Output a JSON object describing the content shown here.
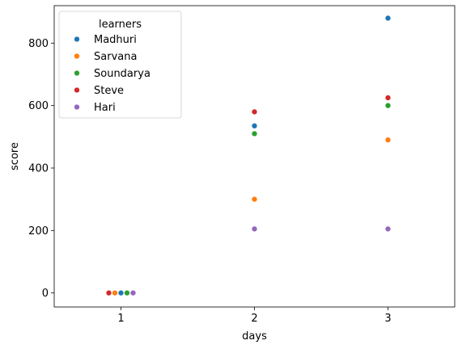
{
  "chart_data": {
    "type": "scatter",
    "title": "",
    "xlabel": "days",
    "ylabel": "score",
    "categories": [
      "1",
      "2",
      "3"
    ],
    "ylim": [
      -45,
      920
    ],
    "yticks": [
      0,
      200,
      400,
      600,
      800
    ],
    "grid": false,
    "legend": {
      "title": "learners",
      "placement": "upper-left"
    },
    "series": [
      {
        "name": "Madhuri",
        "color": "#1f77b4",
        "values": [
          0,
          535,
          880
        ]
      },
      {
        "name": "Sarvana",
        "color": "#ff7f0e",
        "values": [
          0,
          300,
          490
        ]
      },
      {
        "name": "Soundarya",
        "color": "#2ca02c",
        "values": [
          0,
          510,
          600
        ]
      },
      {
        "name": "Steve",
        "color": "#d62728",
        "values": [
          0,
          580,
          625
        ]
      },
      {
        "name": "Hari",
        "color": "#9467bd",
        "values": [
          0,
          205,
          205
        ]
      }
    ]
  }
}
